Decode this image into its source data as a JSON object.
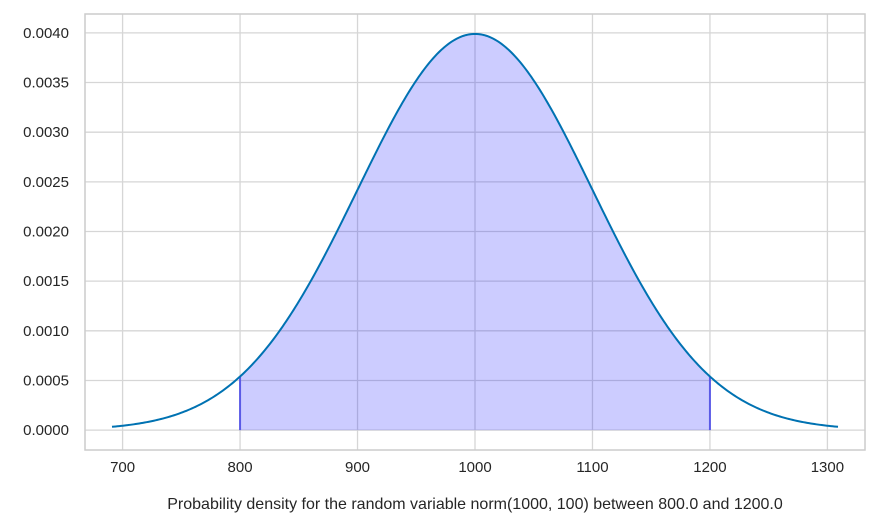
{
  "chart_data": {
    "type": "area",
    "title": "",
    "xlabel": "Probability density for the random variable norm(1000, 100) between 800.0 and 1200.0",
    "ylabel": "",
    "distribution": {
      "name": "norm",
      "mean": 1000,
      "std": 100
    },
    "interval": {
      "lower": 800.0,
      "upper": 1200.0
    },
    "xlim": [
      668,
      1332
    ],
    "ylim": [
      -0.0002,
      0.00419
    ],
    "curve_x_range": [
      690.98,
      1309.02
    ],
    "x_ticks": [
      "700",
      "800",
      "900",
      "1000",
      "1100",
      "1200",
      "1300"
    ],
    "x_tick_values": [
      700,
      800,
      900,
      1000,
      1100,
      1200,
      1300
    ],
    "y_ticks": [
      "0.0000",
      "0.0005",
      "0.0010",
      "0.0015",
      "0.0020",
      "0.0025",
      "0.0030",
      "0.0035",
      "0.0040"
    ],
    "y_tick_values": [
      0,
      0.0005,
      0.001,
      0.0015,
      0.002,
      0.0025,
      0.003,
      0.0035,
      0.004
    ],
    "grid": true,
    "colors": {
      "curve": "#0072b2",
      "fill": "#0000ff",
      "fill_opacity": 0.2,
      "edge": "#5a5ae6",
      "grid": "#d6d6d6",
      "frame": "#cccccc"
    }
  }
}
